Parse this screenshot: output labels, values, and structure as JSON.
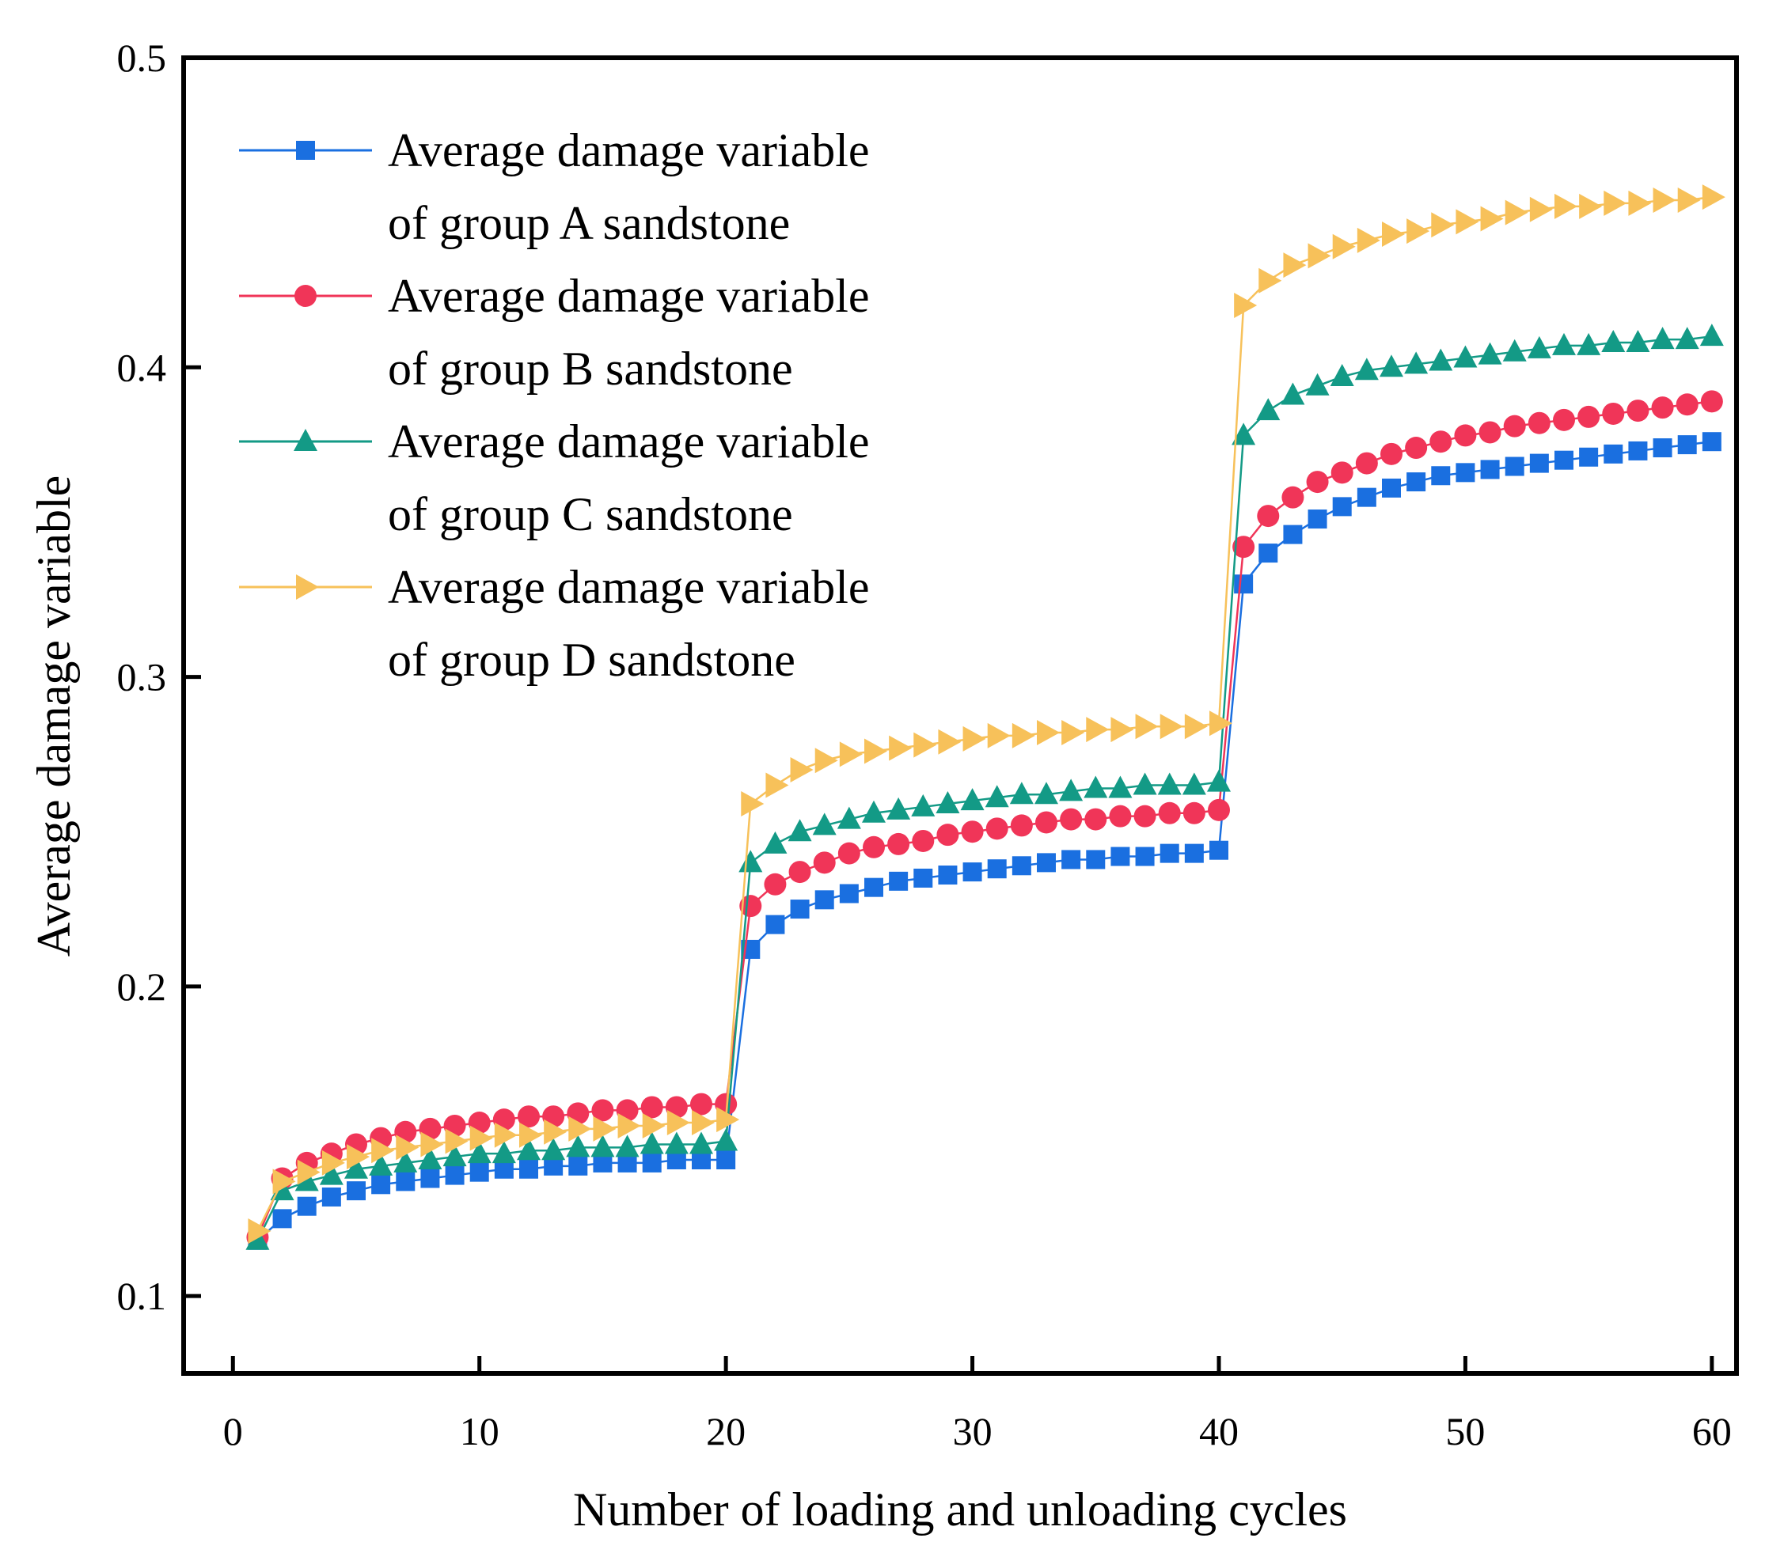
{
  "chart_data": {
    "type": "line",
    "xlabel": "Number of loading and unloading cycles",
    "ylabel": "Average damage variable",
    "xlim": [
      -2,
      61
    ],
    "ylim": [
      0.075,
      0.5
    ],
    "xticks": [
      0,
      10,
      20,
      30,
      40,
      50,
      60
    ],
    "yticks": [
      0.1,
      0.2,
      0.3,
      0.4,
      0.5
    ],
    "xtick_labels": [
      "0",
      "10",
      "20",
      "30",
      "40",
      "50",
      "60"
    ],
    "ytick_labels": [
      "0.1",
      "0.2",
      "0.3",
      "0.4",
      "0.5"
    ],
    "legend_position": "top-left",
    "x": [
      1,
      2,
      3,
      4,
      5,
      6,
      7,
      8,
      9,
      10,
      11,
      12,
      13,
      14,
      15,
      16,
      17,
      18,
      19,
      20,
      21,
      22,
      23,
      24,
      25,
      26,
      27,
      28,
      29,
      30,
      31,
      32,
      33,
      34,
      35,
      36,
      37,
      38,
      39,
      40,
      41,
      42,
      43,
      44,
      45,
      46,
      47,
      48,
      49,
      50,
      51,
      52,
      53,
      54,
      55,
      56,
      57,
      58,
      59,
      60
    ],
    "series": [
      {
        "legend_line1": "Average damage variable",
        "legend_line2": "of group A sandstone",
        "color": "#1a6fe0",
        "marker": "square",
        "values": [
          0.118,
          0.125,
          0.129,
          0.132,
          0.134,
          0.136,
          0.137,
          0.138,
          0.139,
          0.14,
          0.141,
          0.141,
          0.142,
          0.142,
          0.143,
          0.143,
          0.143,
          0.144,
          0.144,
          0.144,
          0.212,
          0.22,
          0.225,
          0.228,
          0.23,
          0.232,
          0.234,
          0.235,
          0.236,
          0.237,
          0.238,
          0.239,
          0.24,
          0.241,
          0.241,
          0.242,
          0.242,
          0.243,
          0.243,
          0.244,
          0.33,
          0.34,
          0.346,
          0.351,
          0.355,
          0.358,
          0.361,
          0.363,
          0.365,
          0.366,
          0.367,
          0.368,
          0.369,
          0.37,
          0.371,
          0.372,
          0.373,
          0.374,
          0.375,
          0.376
        ]
      },
      {
        "legend_line1": "Average damage variable",
        "legend_line2": "of group B sandstone",
        "color": "#f03558",
        "marker": "circle",
        "values": [
          0.119,
          0.138,
          0.143,
          0.146,
          0.149,
          0.151,
          0.153,
          0.154,
          0.155,
          0.156,
          0.157,
          0.158,
          0.158,
          0.159,
          0.16,
          0.16,
          0.161,
          0.161,
          0.162,
          0.162,
          0.226,
          0.233,
          0.237,
          0.24,
          0.243,
          0.245,
          0.246,
          0.247,
          0.249,
          0.25,
          0.251,
          0.252,
          0.253,
          0.254,
          0.254,
          0.255,
          0.255,
          0.256,
          0.256,
          0.257,
          0.342,
          0.352,
          0.358,
          0.363,
          0.366,
          0.369,
          0.372,
          0.374,
          0.376,
          0.378,
          0.379,
          0.381,
          0.382,
          0.383,
          0.384,
          0.385,
          0.386,
          0.387,
          0.388,
          0.389
        ]
      },
      {
        "legend_line1": "Average damage variable",
        "legend_line2": "of group C sandstone",
        "color": "#139a86",
        "marker": "triangle-up",
        "values": [
          0.118,
          0.134,
          0.137,
          0.139,
          0.141,
          0.142,
          0.143,
          0.144,
          0.145,
          0.146,
          0.146,
          0.147,
          0.147,
          0.148,
          0.148,
          0.148,
          0.149,
          0.149,
          0.149,
          0.15,
          0.24,
          0.246,
          0.25,
          0.252,
          0.254,
          0.256,
          0.257,
          0.258,
          0.259,
          0.26,
          0.261,
          0.262,
          0.262,
          0.263,
          0.264,
          0.264,
          0.265,
          0.265,
          0.265,
          0.266,
          0.378,
          0.386,
          0.391,
          0.394,
          0.397,
          0.399,
          0.4,
          0.401,
          0.402,
          0.403,
          0.404,
          0.405,
          0.406,
          0.407,
          0.407,
          0.408,
          0.408,
          0.409,
          0.409,
          0.41
        ]
      },
      {
        "legend_line1": "Average damage variable",
        "legend_line2": "of group D sandstone",
        "color": "#f7c15a",
        "marker": "triangle-right",
        "values": [
          0.121,
          0.137,
          0.14,
          0.143,
          0.145,
          0.147,
          0.148,
          0.149,
          0.15,
          0.151,
          0.152,
          0.152,
          0.153,
          0.154,
          0.154,
          0.155,
          0.155,
          0.156,
          0.156,
          0.157,
          0.259,
          0.265,
          0.27,
          0.273,
          0.275,
          0.276,
          0.277,
          0.278,
          0.279,
          0.28,
          0.281,
          0.281,
          0.282,
          0.282,
          0.283,
          0.283,
          0.284,
          0.284,
          0.284,
          0.285,
          0.42,
          0.428,
          0.433,
          0.436,
          0.439,
          0.441,
          0.443,
          0.444,
          0.446,
          0.447,
          0.448,
          0.45,
          0.451,
          0.452,
          0.452,
          0.453,
          0.453,
          0.454,
          0.454,
          0.455
        ]
      }
    ]
  }
}
